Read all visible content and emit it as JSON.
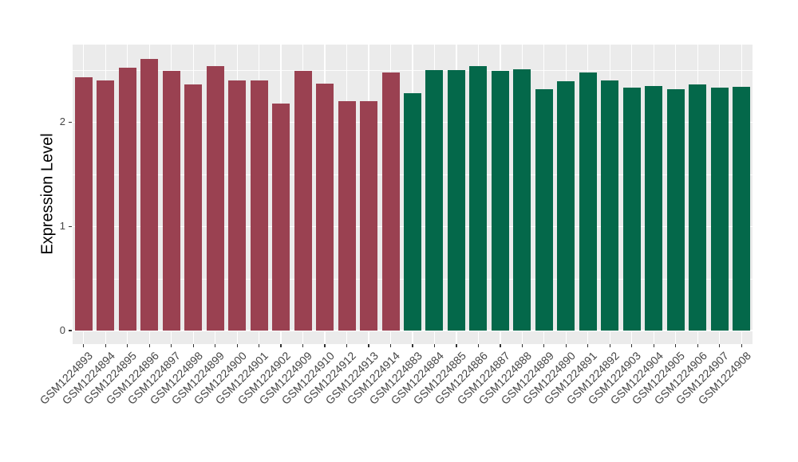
{
  "chart_data": {
    "type": "bar",
    "title": "",
    "xlabel": "",
    "ylabel": "Expression Level",
    "legend": "none",
    "grid": true,
    "panel_background": "#EBEBEB",
    "gridline_color": "#FFFFFF",
    "ylim": [
      -0.13,
      2.75
    ],
    "y_major_ticks": [
      0,
      1,
      2
    ],
    "y_minor_ticks": [
      0.5,
      1.5,
      2.5
    ],
    "x_tick_rotation_deg": 45,
    "palette": [
      "#9A4151",
      "#04684A"
    ],
    "categories": [
      "GSM1224893",
      "GSM1224894",
      "GSM1224895",
      "GSM1224896",
      "GSM1224897",
      "GSM1224898",
      "GSM1224899",
      "GSM1224900",
      "GSM1224901",
      "GSM1224902",
      "GSM1224909",
      "GSM1224910",
      "GSM1224912",
      "GSM1224913",
      "GSM1224914",
      "GSM1224883",
      "GSM1224884",
      "GSM1224885",
      "GSM1224886",
      "GSM1224887",
      "GSM1224888",
      "GSM1224889",
      "GSM1224890",
      "GSM1224891",
      "GSM1224892",
      "GSM1224903",
      "GSM1224904",
      "GSM1224905",
      "GSM1224906",
      "GSM1224907",
      "GSM1224908"
    ],
    "values": [
      2.43,
      2.4,
      2.52,
      2.61,
      2.49,
      2.36,
      2.54,
      2.4,
      2.4,
      2.18,
      2.49,
      2.37,
      2.2,
      2.2,
      2.48,
      2.28,
      2.5,
      2.5,
      2.54,
      2.49,
      2.51,
      2.32,
      2.39,
      2.48,
      2.4,
      2.33,
      2.35,
      2.32,
      2.36,
      2.33,
      2.34
    ],
    "bar_color_index": [
      0,
      0,
      0,
      0,
      0,
      0,
      0,
      0,
      0,
      0,
      0,
      0,
      0,
      0,
      0,
      1,
      1,
      1,
      1,
      1,
      1,
      1,
      1,
      1,
      1,
      1,
      1,
      1,
      1,
      1,
      1
    ]
  }
}
